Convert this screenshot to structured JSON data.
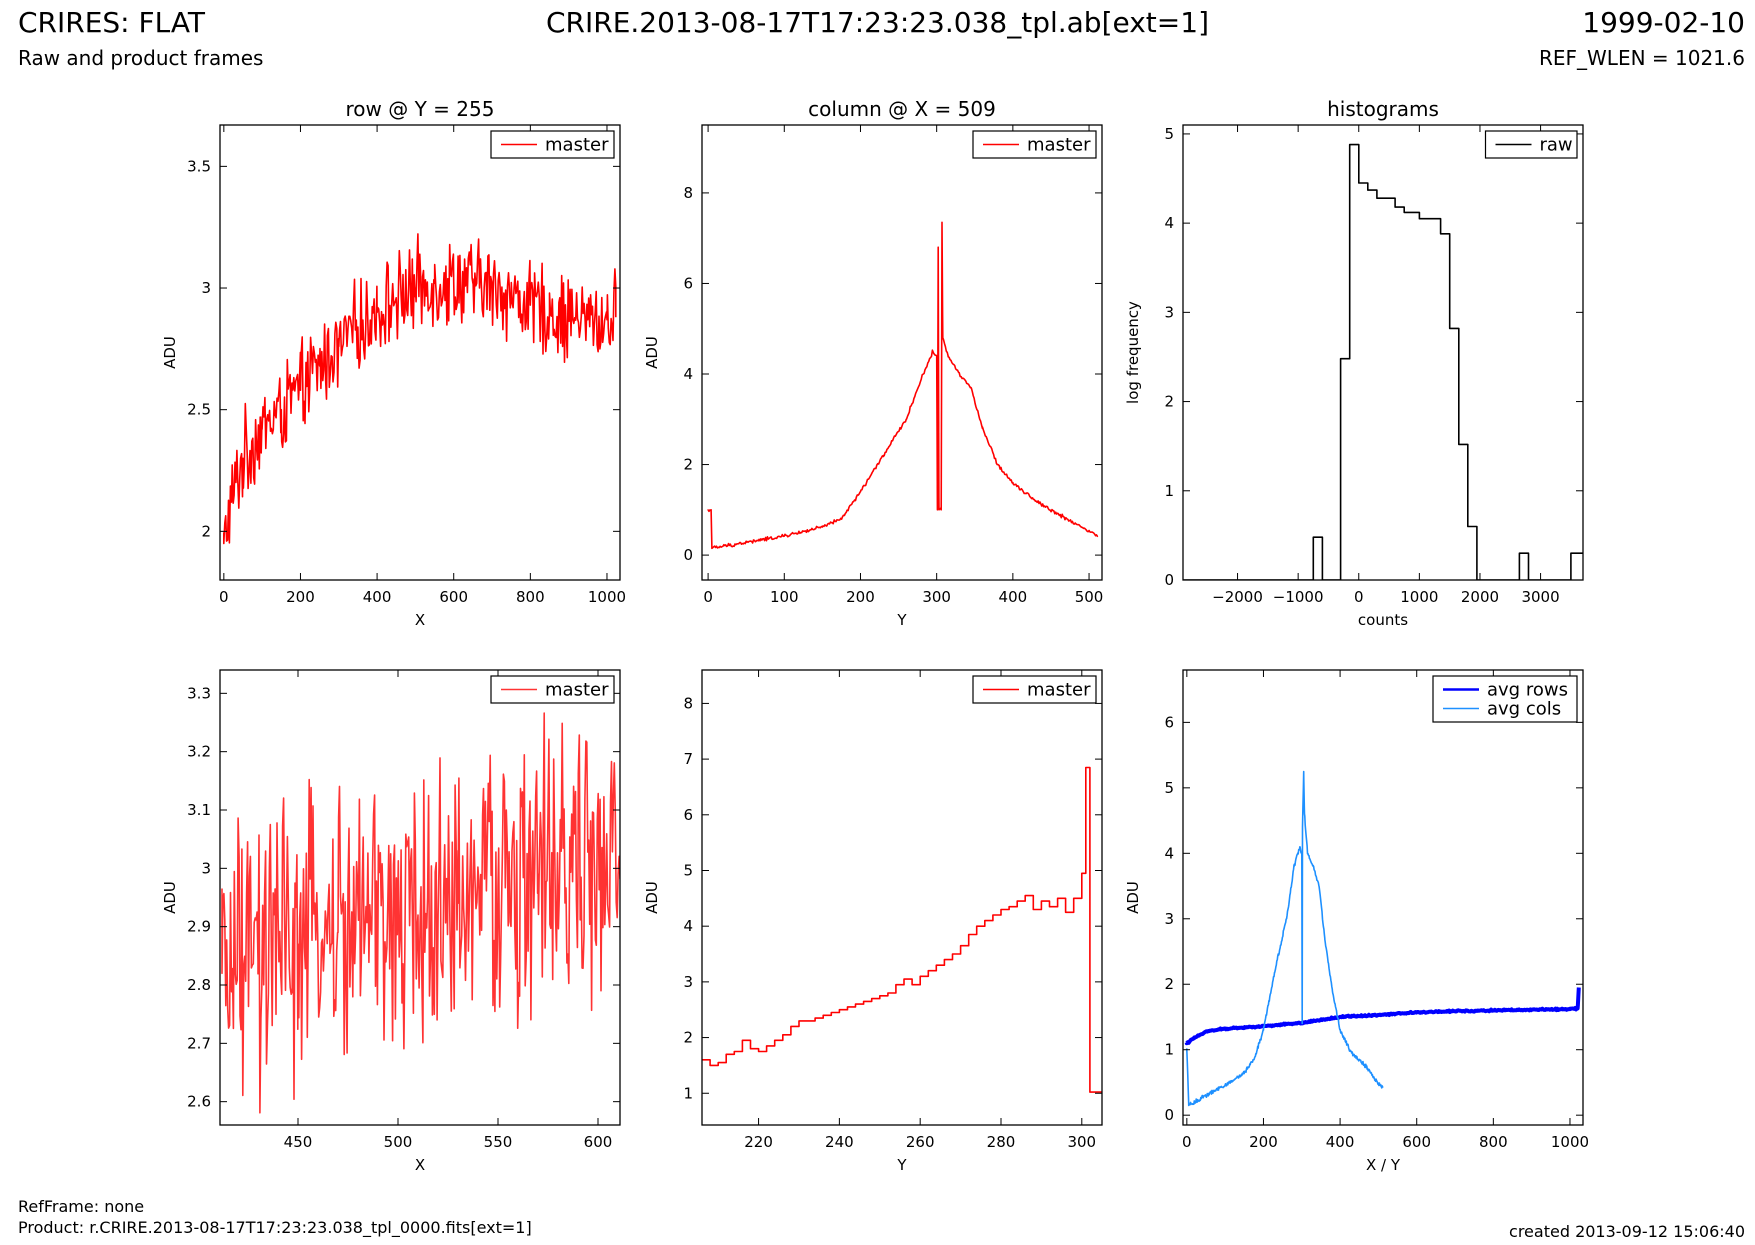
{
  "header": {
    "title": "CRIRES: FLAT",
    "subtitle": "Raw and product frames",
    "file": "CRIRE.2013-08-17T17:23:23.038_tpl.ab[ext=1]",
    "date": "1999-02-10",
    "ref_wlen": "REF_WLEN = 1021.6"
  },
  "footer": {
    "ref_frame": "RefFrame: none",
    "product": "Product: r.CRIRE.2013-08-17T17:23:23.038_tpl_0000.fits[ext=1]",
    "created": "created 2013-09-12 15:06:40"
  },
  "colors": {
    "master": "#ff0000",
    "master_zoom": "#ff3333",
    "raw": "#000000",
    "avg_rows": "#0000ff",
    "avg_cols": "#1e90ff"
  },
  "chart_data": [
    {
      "id": "row",
      "type": "line",
      "title": "row @ Y = 255",
      "xlabel": "X",
      "ylabel": "ADU",
      "xlim": [
        -10,
        1034
      ],
      "ylim": [
        1.8,
        3.67
      ],
      "xticks": [
        0,
        200,
        400,
        600,
        800,
        1000
      ],
      "yticks": [
        2.0,
        2.5,
        3.0,
        3.5
      ],
      "legend": "top-right",
      "series": [
        {
          "name": "master",
          "color_key": "master",
          "points": [
            [
              0,
              1.95
            ],
            [
              20,
              2.12
            ],
            [
              50,
              2.3
            ],
            [
              100,
              2.42
            ],
            [
              150,
              2.5
            ],
            [
              200,
              2.58
            ],
            [
              250,
              2.68
            ],
            [
              300,
              2.76
            ],
            [
              350,
              2.84
            ],
            [
              400,
              2.9
            ],
            [
              450,
              2.96
            ],
            [
              500,
              3.0
            ],
            [
              550,
              3.02
            ],
            [
              600,
              3.03
            ],
            [
              650,
              3.02
            ],
            [
              700,
              3.0
            ],
            [
              750,
              2.97
            ],
            [
              800,
              2.93
            ],
            [
              850,
              2.9
            ],
            [
              900,
              2.88
            ],
            [
              950,
              2.87
            ],
            [
              1000,
              2.87
            ],
            [
              1023,
              2.88
            ]
          ],
          "noise": 0.22
        }
      ]
    },
    {
      "id": "column",
      "type": "line",
      "title": "column @ X = 509",
      "xlabel": "Y",
      "ylabel": "ADU",
      "xlim": [
        -8,
        517
      ],
      "ylim": [
        -0.55,
        9.5
      ],
      "xticks": [
        0,
        100,
        200,
        300,
        400,
        500
      ],
      "yticks": [
        0,
        2,
        4,
        6,
        8
      ],
      "legend": "top-right",
      "series": [
        {
          "name": "master",
          "color_key": "master",
          "points": [
            [
              0,
              1.0
            ],
            [
              4,
              1.0
            ],
            [
              5,
              0.15
            ],
            [
              50,
              0.28
            ],
            [
              100,
              0.42
            ],
            [
              150,
              0.62
            ],
            [
              175,
              0.8
            ],
            [
              200,
              1.4
            ],
            [
              230,
              2.2
            ],
            [
              260,
              3.0
            ],
            [
              280,
              3.9
            ],
            [
              295,
              4.5
            ],
            [
              300,
              4.4
            ],
            [
              301,
              1.0
            ],
            [
              302,
              6.8
            ],
            [
              303,
              1.0
            ],
            [
              306,
              1.0
            ],
            [
              307,
              7.35
            ],
            [
              308,
              4.8
            ],
            [
              315,
              4.4
            ],
            [
              330,
              4.0
            ],
            [
              345,
              3.7
            ],
            [
              360,
              2.8
            ],
            [
              380,
              2.0
            ],
            [
              400,
              1.6
            ],
            [
              430,
              1.2
            ],
            [
              460,
              0.9
            ],
            [
              490,
              0.62
            ],
            [
              511,
              0.42
            ]
          ],
          "noise": 0.05
        }
      ]
    },
    {
      "id": "histograms",
      "type": "line",
      "title": "histograms",
      "xlabel": "counts",
      "ylabel": "log frequency",
      "xlim": [
        -2900,
        3700
      ],
      "ylim": [
        0,
        5.1
      ],
      "xticks": [
        -2000,
        -1000,
        0,
        1000,
        2000,
        3000
      ],
      "yticks": [
        0,
        1,
        2,
        3,
        4,
        5
      ],
      "legend": "top-right",
      "series": [
        {
          "name": "raw",
          "color_key": "raw",
          "step": true,
          "points": [
            [
              -2900,
              0
            ],
            [
              -750,
              0
            ],
            [
              -750,
              0.48
            ],
            [
              -600,
              0.48
            ],
            [
              -600,
              0
            ],
            [
              -300,
              0
            ],
            [
              -300,
              2.48
            ],
            [
              -150,
              2.48
            ],
            [
              -150,
              4.88
            ],
            [
              0,
              4.88
            ],
            [
              0,
              4.45
            ],
            [
              150,
              4.45
            ],
            [
              150,
              4.37
            ],
            [
              300,
              4.37
            ],
            [
              300,
              4.28
            ],
            [
              600,
              4.28
            ],
            [
              600,
              4.18
            ],
            [
              750,
              4.18
            ],
            [
              750,
              4.12
            ],
            [
              1000,
              4.12
            ],
            [
              1000,
              4.05
            ],
            [
              1350,
              4.05
            ],
            [
              1350,
              3.88
            ],
            [
              1500,
              3.88
            ],
            [
              1500,
              2.82
            ],
            [
              1650,
              2.82
            ],
            [
              1650,
              1.52
            ],
            [
              1800,
              1.52
            ],
            [
              1800,
              0.6
            ],
            [
              1950,
              0.6
            ],
            [
              1950,
              0
            ],
            [
              2650,
              0
            ],
            [
              2650,
              0.3
            ],
            [
              2800,
              0.3
            ],
            [
              2800,
              0
            ],
            [
              3500,
              0
            ],
            [
              3500,
              0.3
            ],
            [
              3700,
              0.3
            ]
          ]
        }
      ]
    },
    {
      "id": "row-zoom",
      "type": "line",
      "xlabel": "X",
      "ylabel": "ADU",
      "xlim": [
        411,
        611
      ],
      "ylim": [
        2.56,
        3.34
      ],
      "xticks": [
        450,
        500,
        550,
        600
      ],
      "yticks": [
        2.6,
        2.7,
        2.8,
        2.9,
        3.0,
        3.1,
        3.2,
        3.3
      ],
      "legend": "top-right",
      "series": [
        {
          "name": "master",
          "color_key": "master_zoom",
          "points": [
            [
              412,
              2.82
            ],
            [
              430,
              2.84
            ],
            [
              450,
              2.87
            ],
            [
              470,
              2.89
            ],
            [
              490,
              2.91
            ],
            [
              510,
              2.92
            ],
            [
              530,
              2.94
            ],
            [
              550,
              2.97
            ],
            [
              570,
              2.99
            ],
            [
              590,
              3.0
            ],
            [
              611,
              2.99
            ]
          ],
          "noise": 0.3
        }
      ]
    },
    {
      "id": "column-zoom",
      "type": "line",
      "xlabel": "Y",
      "ylabel": "ADU",
      "xlim": [
        206,
        305
      ],
      "ylim": [
        0.43,
        8.6
      ],
      "xticks": [
        220,
        240,
        260,
        280,
        300
      ],
      "yticks": [
        1,
        2,
        3,
        4,
        5,
        6,
        7,
        8
      ],
      "legend": "top-right",
      "series": [
        {
          "name": "master",
          "color_key": "master",
          "step": true,
          "points": [
            [
              206,
              1.6
            ],
            [
              208,
              1.5
            ],
            [
              210,
              1.55
            ],
            [
              212,
              1.7
            ],
            [
              214,
              1.75
            ],
            [
              216,
              1.95
            ],
            [
              218,
              1.8
            ],
            [
              220,
              1.75
            ],
            [
              222,
              1.85
            ],
            [
              224,
              1.95
            ],
            [
              226,
              2.05
            ],
            [
              228,
              2.2
            ],
            [
              230,
              2.3
            ],
            [
              232,
              2.3
            ],
            [
              234,
              2.35
            ],
            [
              236,
              2.4
            ],
            [
              238,
              2.45
            ],
            [
              240,
              2.5
            ],
            [
              242,
              2.55
            ],
            [
              244,
              2.6
            ],
            [
              246,
              2.65
            ],
            [
              248,
              2.7
            ],
            [
              250,
              2.75
            ],
            [
              252,
              2.8
            ],
            [
              254,
              2.95
            ],
            [
              256,
              3.05
            ],
            [
              258,
              2.95
            ],
            [
              260,
              3.1
            ],
            [
              262,
              3.2
            ],
            [
              264,
              3.3
            ],
            [
              266,
              3.4
            ],
            [
              268,
              3.5
            ],
            [
              270,
              3.65
            ],
            [
              272,
              3.85
            ],
            [
              274,
              4.0
            ],
            [
              276,
              4.1
            ],
            [
              278,
              4.2
            ],
            [
              280,
              4.3
            ],
            [
              282,
              4.35
            ],
            [
              284,
              4.45
            ],
            [
              286,
              4.55
            ],
            [
              288,
              4.3
            ],
            [
              290,
              4.45
            ],
            [
              292,
              4.35
            ],
            [
              294,
              4.5
            ],
            [
              296,
              4.25
            ],
            [
              298,
              4.5
            ],
            [
              300,
              4.95
            ],
            [
              301,
              6.85
            ],
            [
              302,
              1.02
            ],
            [
              305,
              1.02
            ]
          ]
        }
      ]
    },
    {
      "id": "averages",
      "type": "line",
      "xlabel": "X / Y",
      "ylabel": "ADU",
      "xlim": [
        -10,
        1034
      ],
      "ylim": [
        -0.15,
        6.8
      ],
      "xticks": [
        0,
        200,
        400,
        600,
        800,
        1000
      ],
      "yticks": [
        0,
        1,
        2,
        3,
        4,
        5,
        6
      ],
      "legend": "top-right",
      "series": [
        {
          "name": "avg rows",
          "color_key": "avg_rows",
          "width": 4,
          "points": [
            [
              0,
              1.1
            ],
            [
              20,
              1.18
            ],
            [
              50,
              1.28
            ],
            [
              100,
              1.32
            ],
            [
              200,
              1.36
            ],
            [
              300,
              1.41
            ],
            [
              400,
              1.5
            ],
            [
              500,
              1.53
            ],
            [
              600,
              1.57
            ],
            [
              700,
              1.59
            ],
            [
              800,
              1.6
            ],
            [
              900,
              1.61
            ],
            [
              1000,
              1.62
            ],
            [
              1020,
              1.63
            ],
            [
              1023,
              1.95
            ]
          ],
          "noise": 0.015
        },
        {
          "name": "avg cols",
          "color_key": "avg_cols",
          "points": [
            [
              0,
              1.0
            ],
            [
              5,
              0.15
            ],
            [
              50,
              0.3
            ],
            [
              100,
              0.45
            ],
            [
              150,
              0.65
            ],
            [
              175,
              0.85
            ],
            [
              200,
              1.3
            ],
            [
              230,
              2.2
            ],
            [
              260,
              3.0
            ],
            [
              280,
              3.8
            ],
            [
              295,
              4.1
            ],
            [
              300,
              4.0
            ],
            [
              301,
              1.4
            ],
            [
              302,
              4.4
            ],
            [
              305,
              5.25
            ],
            [
              307,
              4.6
            ],
            [
              315,
              4.0
            ],
            [
              330,
              3.8
            ],
            [
              345,
              3.5
            ],
            [
              360,
              2.7
            ],
            [
              380,
              1.9
            ],
            [
              400,
              1.3
            ],
            [
              430,
              0.95
            ],
            [
              460,
              0.8
            ],
            [
              490,
              0.55
            ],
            [
              511,
              0.42
            ]
          ],
          "noise": 0.04
        }
      ]
    }
  ]
}
